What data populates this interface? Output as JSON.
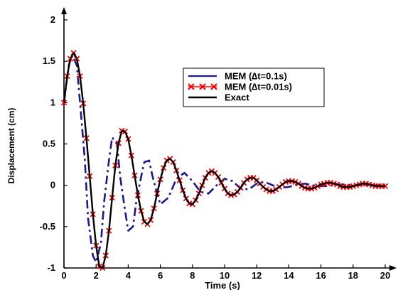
{
  "chart_data": {
    "type": "line",
    "xlabel": "Time (s)",
    "ylabel": "Displacement (cm)",
    "xlim": [
      0,
      20
    ],
    "ylim": [
      -1,
      2
    ],
    "x_ticks": [
      "0",
      "2",
      "4",
      "6",
      "8",
      "10",
      "12",
      "14",
      "16",
      "18",
      "20"
    ],
    "y_ticks": [
      "-1",
      "-0.5",
      "0",
      "0.5",
      "1",
      "1.5",
      "2"
    ],
    "grid": false,
    "legend_position": "top-right",
    "series": [
      {
        "name": "MEM (∆t=0.1s)",
        "color": "#1a1a8c",
        "style": "dash-dot",
        "x": [
          0.0,
          0.3,
          0.5,
          0.8,
          1.0,
          1.3,
          1.5,
          1.8,
          2.0,
          2.3,
          2.5,
          2.8,
          3.0,
          3.3,
          3.5,
          3.8,
          4.0,
          4.3,
          4.5,
          4.8,
          5.0,
          5.3,
          5.5,
          5.8,
          6.0,
          6.5,
          7.0,
          7.5,
          8.0,
          8.5,
          9.0,
          9.5,
          10.0,
          10.5,
          11.0,
          11.5,
          12.0,
          12.5,
          13.0,
          13.5,
          14.0,
          14.5,
          15.0,
          15.5,
          16.0,
          16.5,
          17.0,
          17.5,
          18.0,
          18.5,
          19.0,
          19.5,
          20.0
        ],
        "y": [
          1.0,
          1.45,
          1.58,
          1.45,
          1.0,
          0.3,
          -0.4,
          -0.85,
          -0.93,
          -0.7,
          -0.2,
          0.3,
          0.58,
          0.5,
          0.1,
          -0.3,
          -0.55,
          -0.5,
          -0.2,
          0.1,
          0.28,
          0.3,
          0.12,
          -0.1,
          -0.23,
          -0.15,
          0.08,
          0.15,
          0.05,
          -0.08,
          -0.1,
          0.0,
          0.08,
          0.05,
          -0.04,
          -0.05,
          0.02,
          0.04,
          0.0,
          -0.03,
          -0.02,
          0.01,
          0.02,
          0.0,
          -0.01,
          -0.01,
          0.01,
          0.01,
          0.0,
          0.0,
          0.0,
          0.0,
          0.0
        ]
      },
      {
        "name": "MEM (∆t=0.01s)",
        "color": "#ff0000",
        "style": "x-markers",
        "x": [
          0.0,
          0.2,
          0.4,
          0.6,
          0.8,
          1.0,
          1.2,
          1.4,
          1.6,
          1.8,
          2.0,
          2.2,
          2.4,
          2.6,
          2.8,
          3.0,
          3.2,
          3.4,
          3.6,
          3.8,
          4.0,
          4.2,
          4.4,
          4.6,
          4.8,
          5.0,
          5.2,
          5.4,
          5.6,
          5.8,
          6.0,
          6.2,
          6.4,
          6.6,
          6.8,
          7.0,
          7.2,
          7.4,
          7.6,
          7.8,
          8.0,
          8.2,
          8.4,
          8.6,
          8.8,
          9.0,
          9.2,
          9.4,
          9.6,
          9.8,
          10.0,
          10.2,
          10.4,
          10.6,
          10.8,
          11.0,
          11.2,
          11.4,
          11.6,
          11.8,
          12.0,
          12.2,
          12.4,
          12.6,
          12.8,
          13.0,
          13.2,
          13.4,
          13.6,
          13.8,
          14.0,
          14.2,
          14.4,
          14.6,
          14.8,
          15.0,
          15.2,
          15.4,
          15.6,
          15.8,
          16.0,
          16.2,
          16.4,
          16.6,
          16.8,
          17.0,
          17.2,
          17.4,
          17.6,
          17.8,
          18.0,
          18.2,
          18.4,
          18.6,
          18.8,
          19.0,
          19.2,
          19.4,
          19.6,
          19.8,
          20.0
        ],
        "y": [
          1.0,
          1.32,
          1.53,
          1.6,
          1.53,
          1.32,
          0.99,
          0.57,
          0.11,
          -0.35,
          -0.73,
          -0.98,
          -1.0,
          -0.85,
          -0.55,
          -0.15,
          0.24,
          0.51,
          0.66,
          0.65,
          0.56,
          0.36,
          0.12,
          -0.12,
          -0.31,
          -0.44,
          -0.47,
          -0.42,
          -0.28,
          -0.1,
          0.07,
          0.21,
          0.3,
          0.32,
          0.28,
          0.18,
          0.06,
          -0.06,
          -0.16,
          -0.22,
          -0.23,
          -0.18,
          -0.1,
          0.0,
          0.09,
          0.15,
          0.17,
          0.15,
          0.1,
          0.03,
          -0.04,
          -0.1,
          -0.12,
          -0.11,
          -0.08,
          -0.03,
          0.03,
          0.07,
          0.09,
          0.09,
          0.06,
          0.02,
          -0.02,
          -0.05,
          -0.07,
          -0.07,
          -0.05,
          -0.02,
          0.01,
          0.04,
          0.05,
          0.05,
          0.04,
          0.02,
          -0.01,
          -0.03,
          -0.04,
          -0.04,
          -0.03,
          -0.01,
          0.01,
          0.02,
          0.03,
          0.03,
          0.02,
          0.01,
          -0.01,
          -0.02,
          -0.02,
          -0.02,
          -0.01,
          0.0,
          0.01,
          0.02,
          0.02,
          0.01,
          0.0,
          -0.01,
          -0.01,
          -0.01,
          -0.01
        ]
      },
      {
        "name": "Exact",
        "color": "#000000",
        "style": "solid",
        "x": [
          0.0,
          0.2,
          0.4,
          0.6,
          0.8,
          1.0,
          1.2,
          1.4,
          1.6,
          1.8,
          2.0,
          2.2,
          2.4,
          2.6,
          2.8,
          3.0,
          3.2,
          3.4,
          3.6,
          3.8,
          4.0,
          4.2,
          4.4,
          4.6,
          4.8,
          5.0,
          5.2,
          5.4,
          5.6,
          5.8,
          6.0,
          6.2,
          6.4,
          6.6,
          6.8,
          7.0,
          7.2,
          7.4,
          7.6,
          7.8,
          8.0,
          8.2,
          8.4,
          8.6,
          8.8,
          9.0,
          9.2,
          9.4,
          9.6,
          9.8,
          10.0,
          10.2,
          10.4,
          10.6,
          10.8,
          11.0,
          11.2,
          11.4,
          11.6,
          11.8,
          12.0,
          12.2,
          12.4,
          12.6,
          12.8,
          13.0,
          13.2,
          13.4,
          13.6,
          13.8,
          14.0,
          14.2,
          14.4,
          14.6,
          14.8,
          15.0,
          15.2,
          15.4,
          15.6,
          15.8,
          16.0,
          16.2,
          16.4,
          16.6,
          16.8,
          17.0,
          17.2,
          17.4,
          17.6,
          17.8,
          18.0,
          18.2,
          18.4,
          18.6,
          18.8,
          19.0,
          19.2,
          19.4,
          19.6,
          19.8,
          20.0
        ],
        "y": [
          1.0,
          1.32,
          1.53,
          1.6,
          1.53,
          1.32,
          0.99,
          0.57,
          0.11,
          -0.35,
          -0.73,
          -0.98,
          -1.0,
          -0.85,
          -0.55,
          -0.15,
          0.24,
          0.51,
          0.66,
          0.65,
          0.56,
          0.36,
          0.12,
          -0.12,
          -0.31,
          -0.44,
          -0.47,
          -0.42,
          -0.28,
          -0.1,
          0.07,
          0.21,
          0.3,
          0.32,
          0.28,
          0.18,
          0.06,
          -0.06,
          -0.16,
          -0.22,
          -0.23,
          -0.18,
          -0.1,
          0.0,
          0.09,
          0.15,
          0.17,
          0.15,
          0.1,
          0.03,
          -0.04,
          -0.1,
          -0.12,
          -0.11,
          -0.08,
          -0.03,
          0.03,
          0.07,
          0.09,
          0.09,
          0.06,
          0.02,
          -0.02,
          -0.05,
          -0.07,
          -0.07,
          -0.05,
          -0.02,
          0.01,
          0.04,
          0.05,
          0.05,
          0.04,
          0.02,
          -0.01,
          -0.03,
          -0.04,
          -0.04,
          -0.03,
          -0.01,
          0.01,
          0.02,
          0.03,
          0.03,
          0.02,
          0.01,
          -0.01,
          -0.02,
          -0.02,
          -0.02,
          -0.01,
          0.0,
          0.01,
          0.02,
          0.02,
          0.01,
          0.0,
          -0.01,
          -0.01,
          -0.01,
          -0.01
        ]
      }
    ]
  }
}
